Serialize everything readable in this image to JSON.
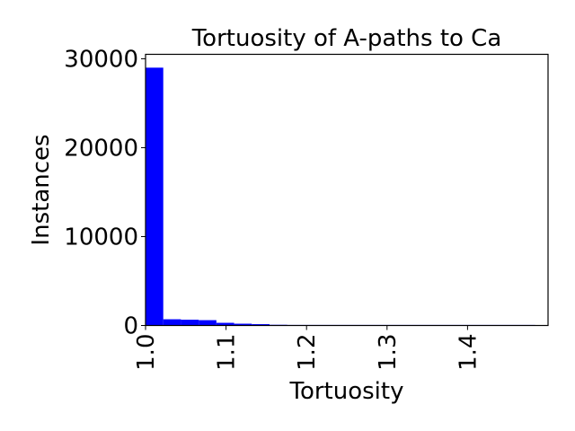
{
  "chart_data": {
    "type": "histogram",
    "title": "Tortuosity of A-paths to Ca",
    "xlabel": "Tortuosity",
    "ylabel": "Instances",
    "xlim": [
      1.0,
      1.5
    ],
    "ylim": [
      0,
      30500
    ],
    "xticks": [
      1.0,
      1.1,
      1.2,
      1.3,
      1.4
    ],
    "xtick_labels": [
      "1.0",
      "1.1",
      "1.2",
      "1.3",
      "1.4"
    ],
    "yticks": [
      0,
      10000,
      20000,
      30000
    ],
    "ytick_labels": [
      "0",
      "10000",
      "20000",
      "30000"
    ],
    "bar_color": "#0000ff",
    "grid": false,
    "bins": [
      {
        "x0": 1.0,
        "x1": 1.022,
        "count": 29000
      },
      {
        "x0": 1.022,
        "x1": 1.044,
        "count": 700
      },
      {
        "x0": 1.044,
        "x1": 1.066,
        "count": 650
      },
      {
        "x0": 1.066,
        "x1": 1.088,
        "count": 600
      },
      {
        "x0": 1.088,
        "x1": 1.11,
        "count": 300
      },
      {
        "x0": 1.11,
        "x1": 1.132,
        "count": 200
      },
      {
        "x0": 1.132,
        "x1": 1.154,
        "count": 150
      },
      {
        "x0": 1.154,
        "x1": 1.176,
        "count": 80
      },
      {
        "x0": 1.176,
        "x1": 1.198,
        "count": 30
      },
      {
        "x0": 1.198,
        "x1": 1.22,
        "count": 15
      },
      {
        "x0": 1.22,
        "x1": 1.242,
        "count": 10
      },
      {
        "x0": 1.242,
        "x1": 1.264,
        "count": 8
      },
      {
        "x0": 1.264,
        "x1": 1.286,
        "count": 5
      },
      {
        "x0": 1.286,
        "x1": 1.308,
        "count": 4
      },
      {
        "x0": 1.308,
        "x1": 1.33,
        "count": 3
      },
      {
        "x0": 1.33,
        "x1": 1.352,
        "count": 3
      },
      {
        "x0": 1.352,
        "x1": 1.374,
        "count": 2
      },
      {
        "x0": 1.374,
        "x1": 1.396,
        "count": 2
      },
      {
        "x0": 1.396,
        "x1": 1.418,
        "count": 1
      },
      {
        "x0": 1.418,
        "x1": 1.44,
        "count": 1
      },
      {
        "x0": 1.44,
        "x1": 1.462,
        "count": 1
      },
      {
        "x0": 1.462,
        "x1": 1.484,
        "count": 1
      }
    ]
  }
}
